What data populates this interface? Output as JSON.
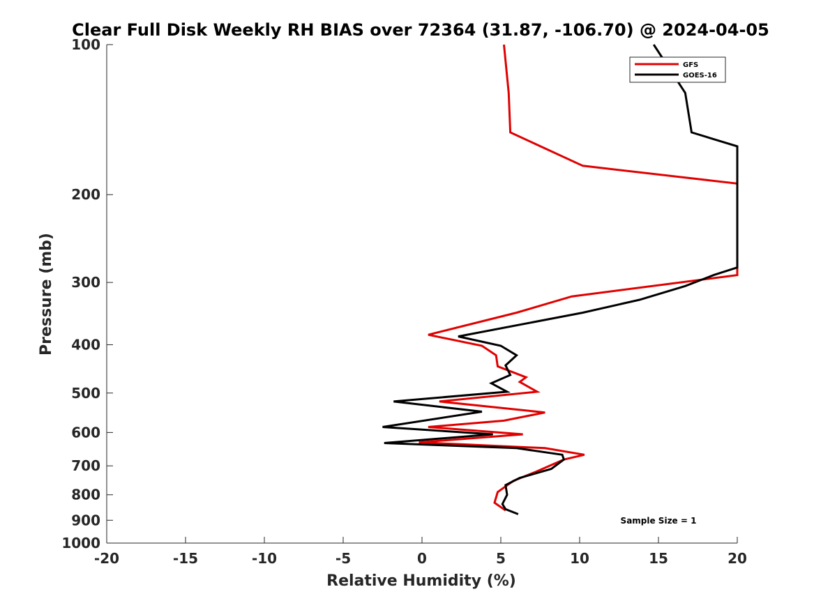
{
  "chart_data": {
    "type": "line",
    "title": "Clear Full Disk Weekly RH BIAS over 72364 (31.87, -106.70) @ 2024-04-05",
    "xlabel": "Relative Humidity (%)",
    "ylabel": "Pressure (mb)",
    "xlim": [
      -20,
      20
    ],
    "ylim": [
      100,
      1000
    ],
    "y_scale": "log",
    "y_reversed": true,
    "x_ticks": [
      -20,
      -15,
      -10,
      -5,
      0,
      5,
      10,
      15,
      20
    ],
    "x_tick_labels": [
      "-20",
      "-15",
      "-10",
      "-5",
      "0",
      "5",
      "10",
      "15",
      "20"
    ],
    "y_ticks": [
      100,
      200,
      300,
      400,
      500,
      600,
      700,
      800,
      900,
      1000
    ],
    "y_tick_labels": [
      "100",
      "200",
      "300",
      "400",
      "500",
      "600",
      "700",
      "800",
      "900",
      "1000"
    ],
    "grid": false,
    "legend_position": "top-right",
    "annotation": "Sample Size = 1",
    "series": [
      {
        "name": "GFS",
        "color": "#e00000",
        "points": [
          [
            5.2,
            100
          ],
          [
            5.5,
            125
          ],
          [
            5.6,
            150
          ],
          [
            10.2,
            175
          ],
          [
            20.0,
            190
          ],
          [
            20.0,
            290
          ],
          [
            9.5,
            320
          ],
          [
            6.0,
            345
          ],
          [
            0.4,
            382
          ],
          [
            3.8,
            402
          ],
          [
            4.7,
            420
          ],
          [
            4.8,
            442
          ],
          [
            6.6,
            465
          ],
          [
            6.2,
            475
          ],
          [
            7.3,
            497
          ],
          [
            1.1,
            520
          ],
          [
            7.8,
            547
          ],
          [
            5.2,
            568
          ],
          [
            0.4,
            585
          ],
          [
            6.4,
            605
          ],
          [
            -0.2,
            628
          ],
          [
            7.8,
            645
          ],
          [
            10.3,
            665
          ],
          [
            9.0,
            680
          ],
          [
            7.2,
            720
          ],
          [
            5.8,
            750
          ],
          [
            4.8,
            790
          ],
          [
            4.6,
            830
          ],
          [
            5.3,
            860
          ]
        ]
      },
      {
        "name": "GOES-16",
        "color": "#000000",
        "points": [
          [
            14.7,
            100
          ],
          [
            16.7,
            125
          ],
          [
            17.1,
            150
          ],
          [
            20.0,
            160
          ],
          [
            20.0,
            280
          ],
          [
            18.5,
            290
          ],
          [
            16.7,
            305
          ],
          [
            13.8,
            325
          ],
          [
            10.2,
            345
          ],
          [
            2.3,
            385
          ],
          [
            5.0,
            402
          ],
          [
            6.0,
            420
          ],
          [
            5.3,
            440
          ],
          [
            5.6,
            460
          ],
          [
            4.4,
            478
          ],
          [
            5.4,
            497
          ],
          [
            -1.8,
            520
          ],
          [
            3.8,
            545
          ],
          [
            -2.5,
            585
          ],
          [
            4.5,
            605
          ],
          [
            -2.4,
            630
          ],
          [
            6.0,
            645
          ],
          [
            8.9,
            665
          ],
          [
            9.0,
            680
          ],
          [
            8.2,
            710
          ],
          [
            6.2,
            740
          ],
          [
            5.3,
            765
          ],
          [
            5.4,
            800
          ],
          [
            5.1,
            835
          ],
          [
            5.3,
            855
          ],
          [
            6.1,
            875
          ]
        ]
      }
    ]
  }
}
